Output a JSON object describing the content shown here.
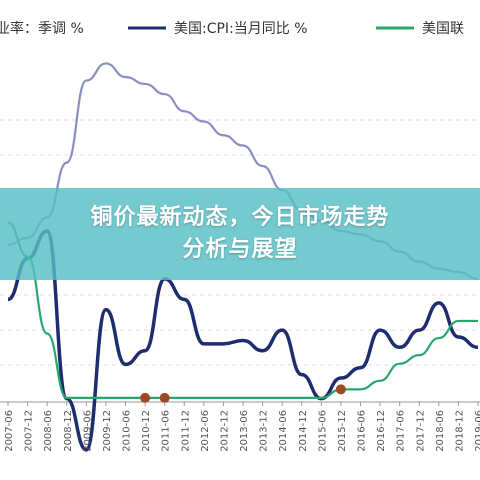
{
  "chart_data": {
    "type": "line",
    "x": [
      "2007-06",
      "2007-12",
      "2008-06",
      "2008-12",
      "2009-06",
      "2009-12",
      "2010-06",
      "2010-12",
      "2011-06",
      "2011-12",
      "2012-06",
      "2012-12",
      "2013-06",
      "2013-12",
      "2014-06",
      "2014-12",
      "2015-06",
      "2015-12",
      "2016-06",
      "2016-12",
      "2017-06",
      "2017-12",
      "2018-06",
      "2018-12",
      "2019-06"
    ],
    "ylim": [
      0,
      10
    ],
    "series": [
      {
        "name": "业率：季调 %",
        "color": "#8a8fc2",
        "values": [
          4.6,
          4.8,
          5.4,
          7.0,
          9.4,
          9.9,
          9.5,
          9.3,
          9.0,
          8.5,
          8.2,
          7.8,
          7.5,
          6.9,
          6.2,
          5.6,
          5.3,
          5.0,
          4.9,
          4.7,
          4.4,
          4.1,
          3.9,
          3.8,
          3.6
        ]
      },
      {
        "name": "美国:CPI:当月同比 %",
        "color": "#1f2d6e",
        "values": [
          3.0,
          4.2,
          5.0,
          0.1,
          -1.4,
          2.7,
          1.1,
          1.5,
          3.6,
          3.0,
          1.7,
          1.7,
          1.8,
          1.5,
          2.1,
          0.8,
          0.1,
          0.7,
          1.0,
          2.1,
          1.6,
          2.1,
          2.9,
          1.9,
          1.6
        ]
      },
      {
        "name": "美国联",
        "color": "#27a86a",
        "values": [
          5.25,
          4.25,
          2.0,
          0.12,
          0.12,
          0.12,
          0.12,
          0.12,
          0.12,
          0.12,
          0.12,
          0.12,
          0.12,
          0.12,
          0.12,
          0.12,
          0.12,
          0.37,
          0.37,
          0.62,
          1.12,
          1.37,
          1.87,
          2.37,
          2.37
        ]
      }
    ]
  },
  "banner": {
    "line1": "铜价最新动态，今日市场走势",
    "line2": "分析与展望"
  }
}
